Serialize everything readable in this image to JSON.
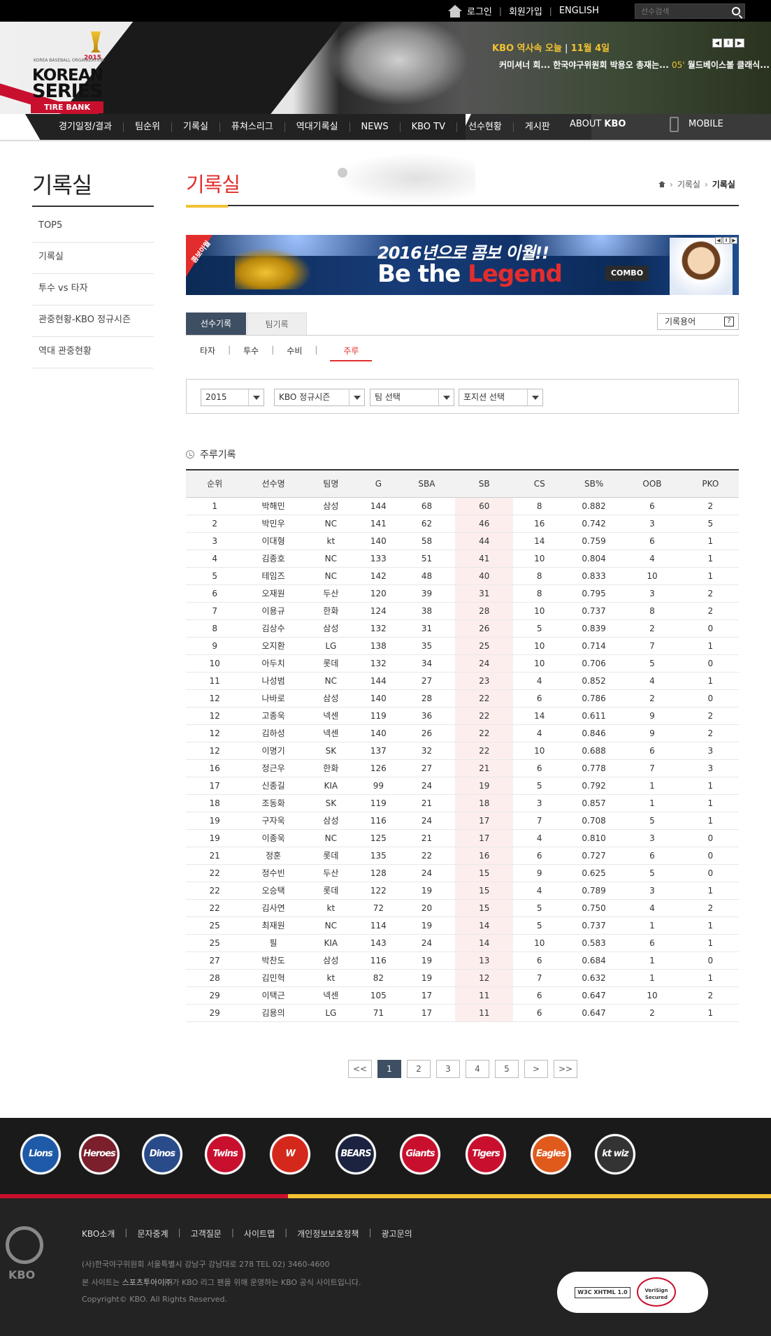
{
  "top": {
    "links": [
      "로그인",
      "회원가입",
      "ENGLISH"
    ],
    "search_placeholder": "선수검색"
  },
  "logo": {
    "line0": "KOREA BASEBALL ORGANIZATION",
    "line1": "KOREAN",
    "line2": "SERIES",
    "year": "2015",
    "sponsor": "TIRE BANK"
  },
  "ticker": {
    "head": "KBO 역사속 오늘",
    "sep": "|",
    "date": "11월 4일",
    "headline_a": "커미셔너 회... 한국야구위원회 박용오 총재는...",
    "headline_num": "05'",
    "headline_b": "월드베이스볼 클래식... 김"
  },
  "nav": {
    "items": [
      "경기일정/결과",
      "팀순위",
      "기록실",
      "퓨쳐스리그",
      "역대기록실",
      "NEWS",
      "KBO TV",
      "선수현황",
      "게시판"
    ],
    "about_pre": "ABOUT ",
    "about_b": "KBO",
    "mobile": "MOBILE"
  },
  "sidebar": {
    "title": "기록실",
    "items": [
      "TOP5",
      "기록실",
      "투수 vs 타자",
      "관중현황-KBO 정규시즌",
      "역대 관중현황"
    ]
  },
  "main": {
    "title": "기록실",
    "breadcrumb": [
      "기록실",
      "기록실"
    ]
  },
  "banner": {
    "tag": "콤보이월",
    "line1": "2016년으로 콤보 이월!!",
    "line2a": "Be the ",
    "line2b": "Legend",
    "combo": "COMBO"
  },
  "tabs": {
    "primary": [
      "선수기록",
      "팀기록"
    ],
    "glossary": "기록용어",
    "glossary_q": "?",
    "sub": [
      "타자",
      "투수",
      "수비",
      "주루"
    ]
  },
  "filters": {
    "year": "2015",
    "season": "KBO 정규시즌",
    "team": "팀 선택",
    "position": "포지션 선택"
  },
  "section_title": "주루기록",
  "table": {
    "headers": [
      "순위",
      "선수명",
      "팀명",
      "G",
      "SBA",
      "SB",
      "CS",
      "SB%",
      "OOB",
      "PKO"
    ],
    "rows": [
      [
        "1",
        "박해민",
        "삼성",
        "144",
        "68",
        "60",
        "8",
        "0.882",
        "6",
        "2"
      ],
      [
        "2",
        "박민우",
        "NC",
        "141",
        "62",
        "46",
        "16",
        "0.742",
        "3",
        "5"
      ],
      [
        "3",
        "이대형",
        "kt",
        "140",
        "58",
        "44",
        "14",
        "0.759",
        "6",
        "1"
      ],
      [
        "4",
        "김종호",
        "NC",
        "133",
        "51",
        "41",
        "10",
        "0.804",
        "4",
        "1"
      ],
      [
        "5",
        "테임즈",
        "NC",
        "142",
        "48",
        "40",
        "8",
        "0.833",
        "10",
        "1"
      ],
      [
        "6",
        "오재원",
        "두산",
        "120",
        "39",
        "31",
        "8",
        "0.795",
        "3",
        "2"
      ],
      [
        "7",
        "이용규",
        "한화",
        "124",
        "38",
        "28",
        "10",
        "0.737",
        "8",
        "2"
      ],
      [
        "8",
        "김상수",
        "삼성",
        "132",
        "31",
        "26",
        "5",
        "0.839",
        "2",
        "0"
      ],
      [
        "9",
        "오지환",
        "LG",
        "138",
        "35",
        "25",
        "10",
        "0.714",
        "7",
        "1"
      ],
      [
        "10",
        "아두치",
        "롯데",
        "132",
        "34",
        "24",
        "10",
        "0.706",
        "5",
        "0"
      ],
      [
        "11",
        "나성범",
        "NC",
        "144",
        "27",
        "23",
        "4",
        "0.852",
        "4",
        "1"
      ],
      [
        "12",
        "나바로",
        "삼성",
        "140",
        "28",
        "22",
        "6",
        "0.786",
        "2",
        "0"
      ],
      [
        "12",
        "고종욱",
        "넥센",
        "119",
        "36",
        "22",
        "14",
        "0.611",
        "9",
        "2"
      ],
      [
        "12",
        "김하성",
        "넥센",
        "140",
        "26",
        "22",
        "4",
        "0.846",
        "9",
        "2"
      ],
      [
        "12",
        "이명기",
        "SK",
        "137",
        "32",
        "22",
        "10",
        "0.688",
        "6",
        "3"
      ],
      [
        "16",
        "정근우",
        "한화",
        "126",
        "27",
        "21",
        "6",
        "0.778",
        "7",
        "3"
      ],
      [
        "17",
        "신종길",
        "KIA",
        "99",
        "24",
        "19",
        "5",
        "0.792",
        "1",
        "1"
      ],
      [
        "18",
        "조동화",
        "SK",
        "119",
        "21",
        "18",
        "3",
        "0.857",
        "1",
        "1"
      ],
      [
        "19",
        "구자욱",
        "삼성",
        "116",
        "24",
        "17",
        "7",
        "0.708",
        "5",
        "1"
      ],
      [
        "19",
        "이종욱",
        "NC",
        "125",
        "21",
        "17",
        "4",
        "0.810",
        "3",
        "0"
      ],
      [
        "21",
        "정훈",
        "롯데",
        "135",
        "22",
        "16",
        "6",
        "0.727",
        "6",
        "0"
      ],
      [
        "22",
        "정수빈",
        "두산",
        "128",
        "24",
        "15",
        "9",
        "0.625",
        "5",
        "0"
      ],
      [
        "22",
        "오승택",
        "롯데",
        "122",
        "19",
        "15",
        "4",
        "0.789",
        "3",
        "1"
      ],
      [
        "22",
        "김사연",
        "kt",
        "72",
        "20",
        "15",
        "5",
        "0.750",
        "4",
        "2"
      ],
      [
        "25",
        "최재원",
        "NC",
        "114",
        "19",
        "14",
        "5",
        "0.737",
        "1",
        "1"
      ],
      [
        "25",
        "필",
        "KIA",
        "143",
        "24",
        "14",
        "10",
        "0.583",
        "6",
        "1"
      ],
      [
        "27",
        "박찬도",
        "삼성",
        "116",
        "19",
        "13",
        "6",
        "0.684",
        "1",
        "0"
      ],
      [
        "28",
        "김민혁",
        "kt",
        "82",
        "19",
        "12",
        "7",
        "0.632",
        "1",
        "1"
      ],
      [
        "29",
        "이택근",
        "넥센",
        "105",
        "17",
        "11",
        "6",
        "0.647",
        "10",
        "2"
      ],
      [
        "29",
        "김용의",
        "LG",
        "71",
        "17",
        "11",
        "6",
        "0.647",
        "2",
        "1"
      ]
    ]
  },
  "pager": {
    "first": "<<",
    "pages": [
      "1",
      "2",
      "3",
      "4",
      "5"
    ],
    "next": ">",
    "last": ">>"
  },
  "teams": [
    {
      "name": "Lions",
      "color": "#1e5aa8"
    },
    {
      "name": "Heroes",
      "color": "#7a1f2b"
    },
    {
      "name": "Dinos",
      "color": "#2a4b8a"
    },
    {
      "name": "Twins",
      "color": "#c8102e"
    },
    {
      "name": "W",
      "color": "#d4281c"
    },
    {
      "name": "BEARS",
      "color": "#1c2340"
    },
    {
      "name": "Giants",
      "color": "#c8102e"
    },
    {
      "name": "Tigers",
      "color": "#c8102e"
    },
    {
      "name": "Eagles",
      "color": "#e05a1c"
    },
    {
      "name": "kt wiz",
      "color": "#333333"
    }
  ],
  "footer": {
    "logo": "KBO",
    "links": [
      "KBO소개",
      "문자중계",
      "고객질문",
      "사이트맵",
      "개인정보보호정책",
      "광고문의"
    ],
    "address": "(사)한국야구위원회 서울특별시 강남구 강남대로 278 TEL 02) 3460-4600",
    "note_pre": "본 사이트는 ",
    "note_b": "스포츠투아이㈜",
    "note_post": "가 KBO 리그 팬을 위해 운영하는 KBO 공식 사이트입니다.",
    "copyright": "Copyright© KBO. All Rights Reserved.",
    "w3c": "W3C XHTML 1.0",
    "verisign": "VeriSign Secured"
  }
}
